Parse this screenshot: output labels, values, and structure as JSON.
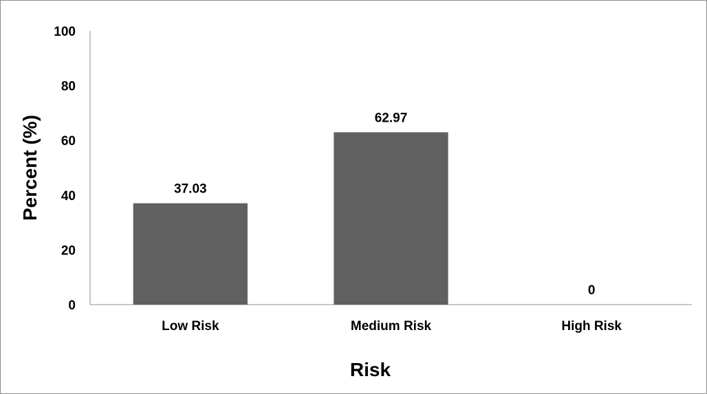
{
  "chart_data": {
    "type": "bar",
    "title": "",
    "xlabel": "Risk",
    "ylabel": "Percent (%)",
    "categories": [
      "Low Risk",
      "Medium Risk",
      "High Risk"
    ],
    "values": [
      37.03,
      62.97,
      0
    ],
    "value_labels": [
      "37.03",
      "62.97",
      "0"
    ],
    "ylim": [
      0,
      100
    ],
    "yticks": [
      0,
      20,
      40,
      60,
      80,
      100
    ],
    "ytick_labels": [
      "0",
      "20",
      "40",
      "60",
      "80",
      "100"
    ],
    "grid": false,
    "legend": "none",
    "bar_color": "#606060"
  }
}
